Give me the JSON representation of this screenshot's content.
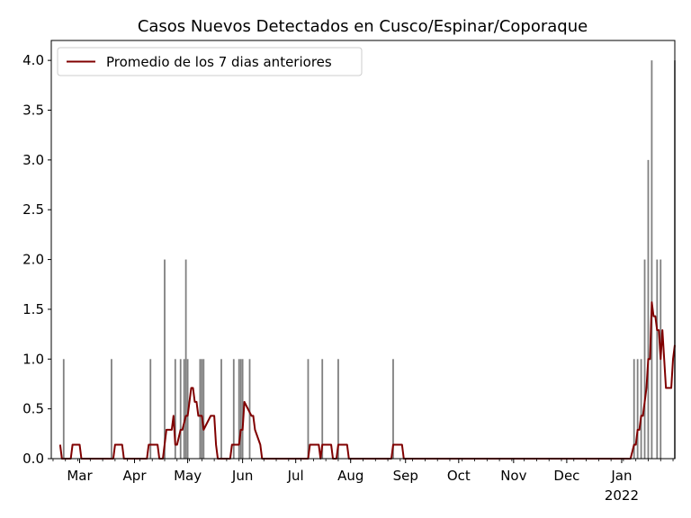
{
  "chart_data": {
    "type": "bar",
    "title": "Casos Nuevos Detectados en Cusco/Espinar/Coporaque",
    "xlabel": "",
    "ylabel": "",
    "xlim": [
      "2021-02-13",
      "2022-01-31"
    ],
    "ylim": [
      0,
      4.2
    ],
    "grid": false,
    "legend_position": "top-left",
    "x_ticks": [
      {
        "date": "2021-03-01",
        "label": "Mar"
      },
      {
        "date": "2021-04-01",
        "label": "Apr"
      },
      {
        "date": "2021-05-01",
        "label": "May"
      },
      {
        "date": "2021-06-01",
        "label": "Jun"
      },
      {
        "date": "2021-07-01",
        "label": "Jul"
      },
      {
        "date": "2021-08-01",
        "label": "Aug"
      },
      {
        "date": "2021-09-01",
        "label": "Sep"
      },
      {
        "date": "2021-10-01",
        "label": "Oct"
      },
      {
        "date": "2021-11-01",
        "label": "Nov"
      },
      {
        "date": "2021-12-01",
        "label": "Dec"
      },
      {
        "date": "2022-01-01",
        "label": "Jan",
        "sublabel": "2022"
      }
    ],
    "y_ticks": [
      {
        "value": 0.0,
        "label": "0.0"
      },
      {
        "value": 0.5,
        "label": "0.5"
      },
      {
        "value": 1.0,
        "label": "1.0"
      },
      {
        "value": 1.5,
        "label": "1.5"
      },
      {
        "value": 2.0,
        "label": "2.0"
      },
      {
        "value": 2.5,
        "label": "2.5"
      },
      {
        "value": 3.0,
        "label": "3.0"
      },
      {
        "value": 3.5,
        "label": "3.5"
      },
      {
        "value": 4.0,
        "label": "4.0"
      }
    ],
    "bars": {
      "color": "#808080",
      "dates": [
        "2021-02-20",
        "2021-03-19",
        "2021-04-10",
        "2021-04-18",
        "2021-04-24",
        "2021-04-27",
        "2021-04-29",
        "2021-04-30",
        "2021-05-01",
        "2021-05-08",
        "2021-05-09",
        "2021-05-10",
        "2021-05-20",
        "2021-05-27",
        "2021-05-30",
        "2021-05-31",
        "2021-06-01",
        "2021-06-05",
        "2021-07-08",
        "2021-07-16",
        "2021-07-25",
        "2021-08-25",
        "2022-01-08",
        "2022-01-10",
        "2022-01-12",
        "2022-01-14",
        "2022-01-16",
        "2022-01-18",
        "2022-01-21",
        "2022-01-23",
        "2022-01-31"
      ],
      "values": [
        1,
        1,
        1,
        2,
        1,
        1,
        1,
        2,
        1,
        1,
        1,
        1,
        1,
        1,
        1,
        1,
        1,
        1,
        1,
        1,
        1,
        1,
        1,
        1,
        1,
        2,
        3,
        4,
        2,
        2,
        4
      ]
    },
    "series": [
      {
        "name": "Promedio de los 7 dias anteriores",
        "color": "#800000",
        "dates": [
          "2021-02-18",
          "2021-02-19",
          "2021-02-24",
          "2021-02-25",
          "2021-03-01",
          "2021-03-02",
          "2021-03-20",
          "2021-03-21",
          "2021-03-25",
          "2021-03-26",
          "2021-04-08",
          "2021-04-09",
          "2021-04-14",
          "2021-04-15",
          "2021-04-17",
          "2021-04-19",
          "2021-04-20",
          "2021-04-22",
          "2021-04-23",
          "2021-04-24",
          "2021-04-25",
          "2021-04-27",
          "2021-04-28",
          "2021-04-30",
          "2021-05-01",
          "2021-05-02",
          "2021-05-03",
          "2021-05-04",
          "2021-05-05",
          "2021-05-06",
          "2021-05-07",
          "2021-05-09",
          "2021-05-10",
          "2021-05-14",
          "2021-05-15",
          "2021-05-16",
          "2021-05-17",
          "2021-05-18",
          "2021-05-19",
          "2021-05-25",
          "2021-05-26",
          "2021-05-27",
          "2021-05-30",
          "2021-05-31",
          "2021-06-01",
          "2021-06-02",
          "2021-06-06",
          "2021-06-07",
          "2021-06-08",
          "2021-06-11",
          "2021-06-12",
          "2021-07-08",
          "2021-07-09",
          "2021-07-14",
          "2021-07-15",
          "2021-07-16",
          "2021-07-21",
          "2021-07-22",
          "2021-07-24",
          "2021-07-25",
          "2021-07-30",
          "2021-07-31",
          "2021-08-24",
          "2021-08-25",
          "2021-08-30",
          "2021-08-31",
          "2022-01-06",
          "2022-01-08",
          "2022-01-09",
          "2022-01-10",
          "2022-01-11",
          "2022-01-12",
          "2022-01-13",
          "2022-01-14",
          "2022-01-15",
          "2022-01-16",
          "2022-01-17",
          "2022-01-18",
          "2022-01-19",
          "2022-01-20",
          "2022-01-21",
          "2022-01-22",
          "2022-01-23",
          "2022-01-24",
          "2022-01-25",
          "2022-01-26",
          "2022-01-27",
          "2022-01-28",
          "2022-01-29",
          "2022-01-30",
          "2022-01-31"
        ],
        "values": [
          0.14,
          0,
          0,
          0.14,
          0.14,
          0,
          0,
          0.14,
          0.14,
          0,
          0,
          0.14,
          0.14,
          0,
          0,
          0.29,
          0.29,
          0.29,
          0.43,
          0.14,
          0.14,
          0.29,
          0.29,
          0.43,
          0.43,
          0.57,
          0.71,
          0.71,
          0.57,
          0.57,
          0.43,
          0.43,
          0.29,
          0.43,
          0.43,
          0.43,
          0.14,
          0,
          0,
          0,
          0.14,
          0.14,
          0.14,
          0.29,
          0.29,
          0.57,
          0.43,
          0.43,
          0.29,
          0.14,
          0,
          0,
          0.14,
          0.14,
          0,
          0.14,
          0.14,
          0,
          0,
          0.14,
          0.14,
          0,
          0,
          0.14,
          0.14,
          0,
          0,
          0.14,
          0.14,
          0.29,
          0.29,
          0.43,
          0.43,
          0.57,
          0.71,
          1.0,
          1.0,
          1.57,
          1.43,
          1.43,
          1.29,
          1.29,
          1.0,
          1.29,
          1.0,
          0.71,
          0.71,
          0.71,
          0.71,
          1.0,
          1.14
        ]
      }
    ]
  }
}
